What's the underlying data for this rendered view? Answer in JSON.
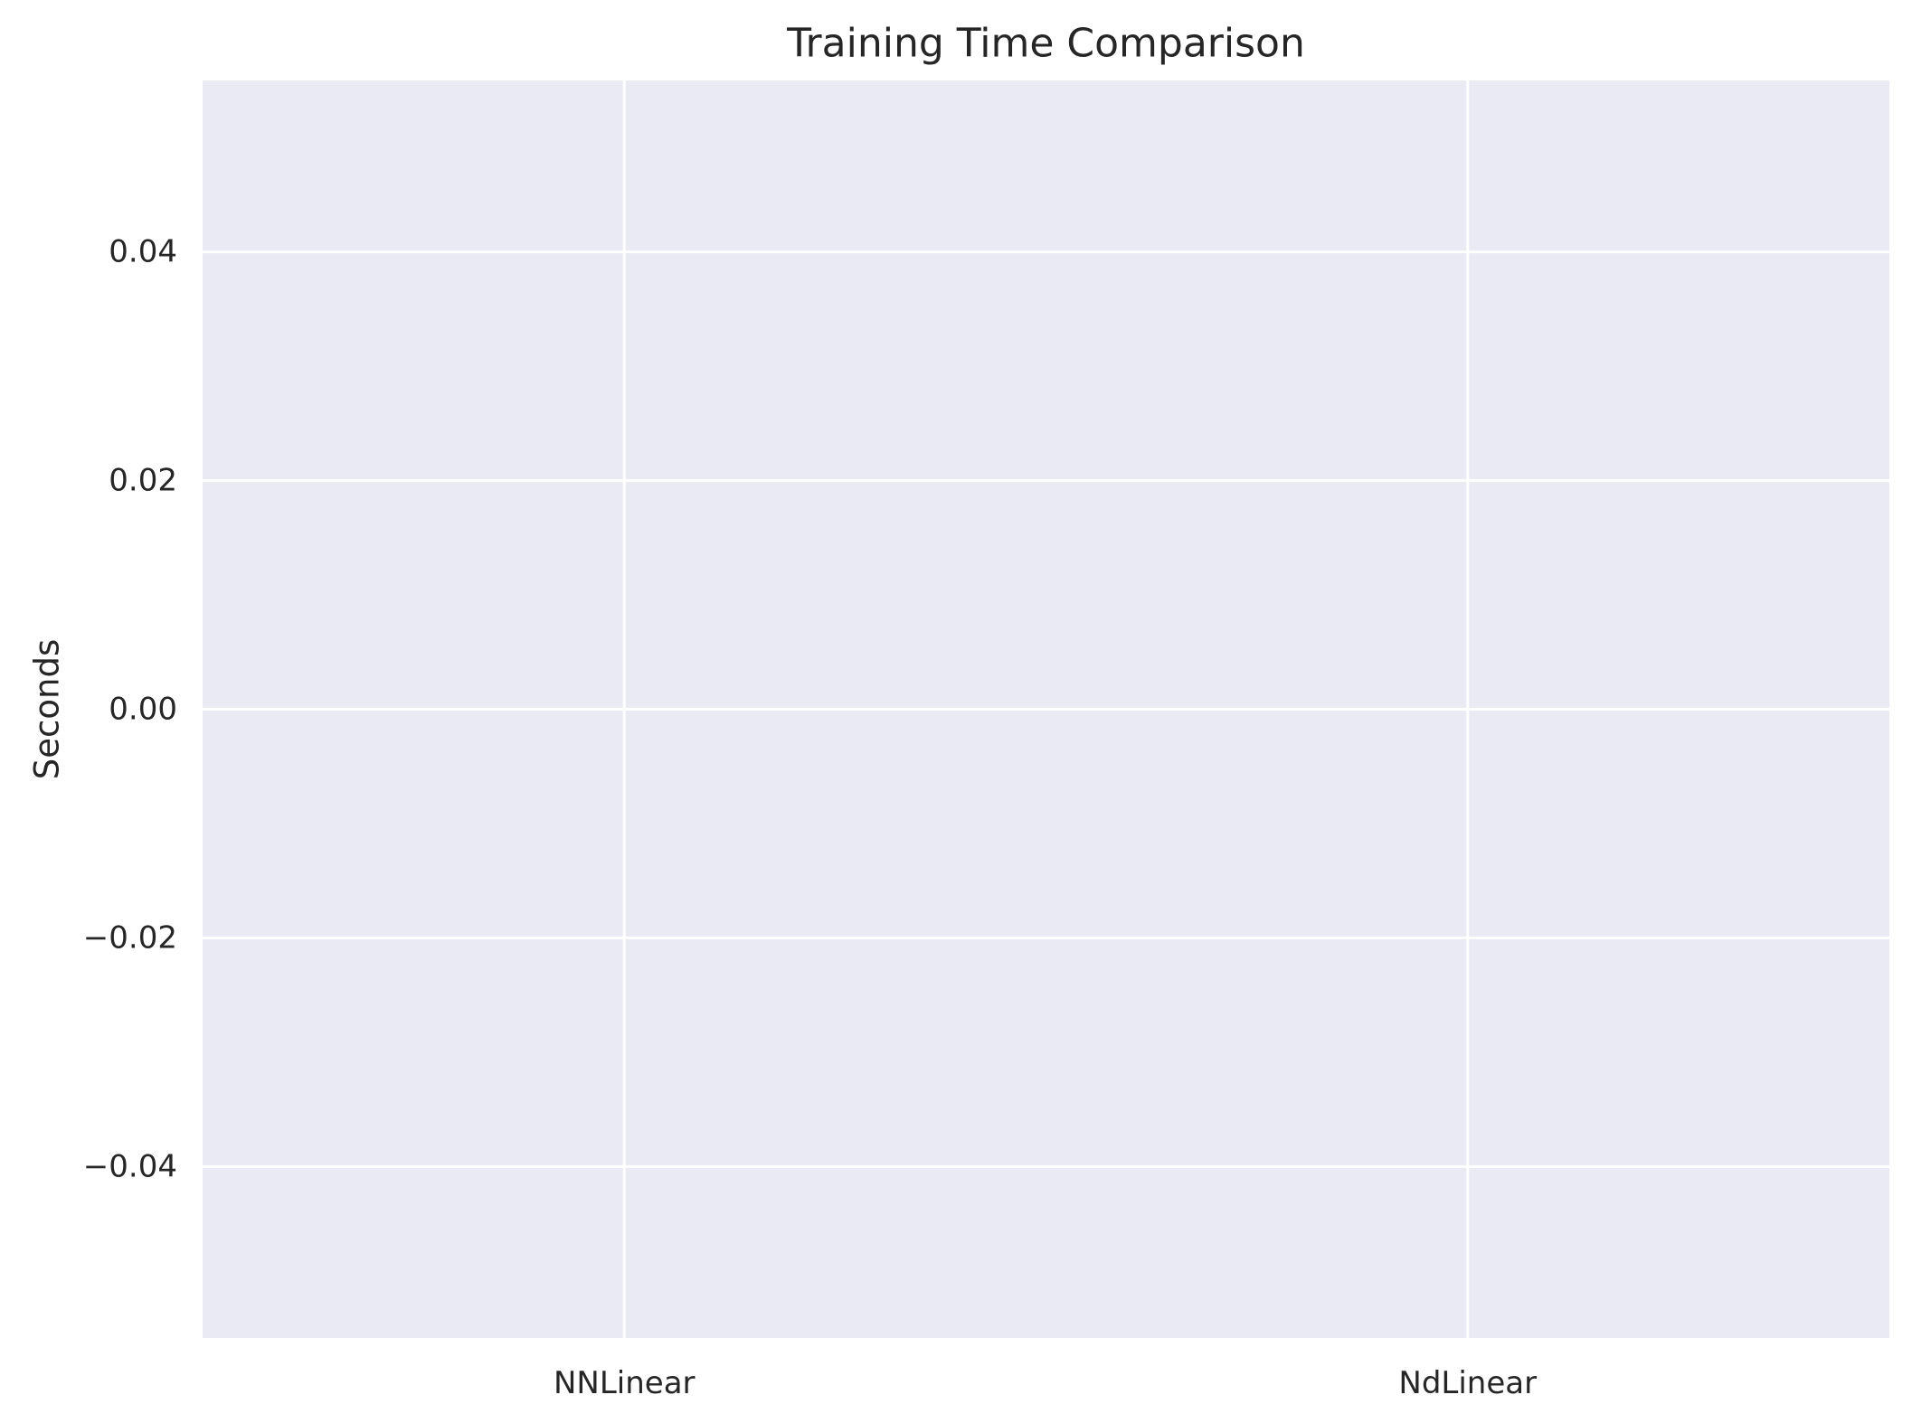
{
  "chart_data": {
    "type": "bar",
    "title": "Training Time Comparison",
    "xlabel": "",
    "ylabel": "Seconds",
    "categories": [
      "NNLinear",
      "NdLinear"
    ],
    "values": [
      0,
      0
    ],
    "ylim": [
      -0.055,
      0.055
    ],
    "yticks": [
      -0.04,
      -0.02,
      0.0,
      0.02,
      0.04
    ],
    "ytick_labels": [
      "−0.04",
      "−0.02",
      "0.00",
      "0.02",
      "0.04"
    ],
    "grid": true,
    "colors": {
      "plot_background": "#eaeaf2",
      "grid": "#ffffff",
      "text": "#262626",
      "bar": "#4c72b0"
    }
  }
}
